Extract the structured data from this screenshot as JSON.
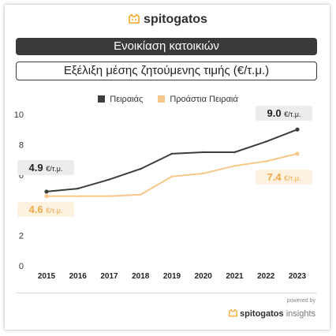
{
  "brand": {
    "name": "spitogatos",
    "icon": "cat-logo-icon",
    "accent": "#f5a623"
  },
  "banner": {
    "title": "Ενοικίαση κατοικιών"
  },
  "subtitle": {
    "text": "Εξέλιξη μέσης ζητούμενης τιμής (€/τ.μ.)"
  },
  "footer": {
    "powered": "powered by",
    "brand": "spitogatos",
    "suffix": "insights"
  },
  "chart_data": {
    "type": "line",
    "x": [
      "2015",
      "2016",
      "2017",
      "2018",
      "2019",
      "2020",
      "2021",
      "2022",
      "2023"
    ],
    "ylim": [
      0,
      10
    ],
    "yticks": [
      0,
      2,
      4,
      6,
      8,
      10
    ],
    "grid": false,
    "legend_position": "top-center",
    "series": [
      {
        "name": "Πειραιάς",
        "color": "#3d3d3d",
        "values": [
          4.9,
          5.1,
          5.7,
          6.4,
          7.4,
          7.5,
          7.5,
          8.2,
          9.0
        ]
      },
      {
        "name": "Προάστια Πειραιά",
        "color": "#f7c78a",
        "values": [
          4.6,
          4.6,
          4.6,
          4.7,
          5.9,
          6.1,
          6.6,
          6.9,
          7.4
        ]
      }
    ],
    "annotations": [
      {
        "series": 0,
        "index": 0,
        "value": "4.9",
        "unit": "€/τ.μ."
      },
      {
        "series": 1,
        "index": 0,
        "value": "4.6",
        "unit": "€/τ.μ."
      },
      {
        "series": 0,
        "index": 8,
        "value": "9.0",
        "unit": "€/τ.μ."
      },
      {
        "series": 1,
        "index": 8,
        "value": "7.4",
        "unit": "€/τ.μ."
      }
    ]
  }
}
